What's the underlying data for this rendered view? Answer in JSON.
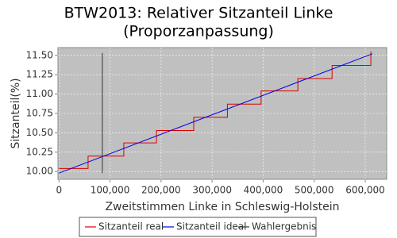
{
  "chart_data": {
    "type": "line",
    "title": "BTW2013: Relativer Sitzanteil Linke",
    "subtitle": "(Proporzanpassung)",
    "x_label": "Zweitstimmen Linke in Schleswig-Holstein",
    "y_label": "Sitzanteil(%)",
    "xlim": [
      -2000,
      642000
    ],
    "ylim": [
      9.9,
      11.6
    ],
    "xticks": [
      {
        "value": 0,
        "label": "0"
      },
      {
        "value": 100000,
        "label": "100,000"
      },
      {
        "value": 200000,
        "label": "200,000"
      },
      {
        "value": 300000,
        "label": "300,000"
      },
      {
        "value": 400000,
        "label": "400,000"
      },
      {
        "value": 500000,
        "label": "500,000"
      },
      {
        "value": 600000,
        "label": "600,000"
      }
    ],
    "yticks": [
      {
        "value": 10.0,
        "label": "10.00"
      },
      {
        "value": 10.25,
        "label": "10.25"
      },
      {
        "value": 10.5,
        "label": "10.50"
      },
      {
        "value": 10.75,
        "label": "10.75"
      },
      {
        "value": 11.0,
        "label": "11.00"
      },
      {
        "value": 11.25,
        "label": "11.25"
      },
      {
        "value": 11.5,
        "label": "11.50"
      }
    ],
    "grid": true,
    "series": [
      {
        "name": "Sitzanteil real",
        "color": "#dd0000",
        "x": [
          0,
          57000,
          57000,
          127000,
          127000,
          191000,
          191000,
          264000,
          264000,
          330000,
          330000,
          396000,
          396000,
          468000,
          468000,
          535000,
          535000,
          611000,
          611000
        ],
        "values": [
          10.04,
          10.04,
          10.2,
          10.2,
          10.37,
          10.37,
          10.53,
          10.53,
          10.7,
          10.7,
          10.87,
          10.87,
          11.04,
          11.04,
          11.2,
          11.2,
          11.37,
          11.37,
          11.55
        ]
      },
      {
        "name": "Sitzanteil ideal",
        "color": "#0000dd",
        "x": [
          0,
          614000
        ],
        "values": [
          9.98,
          11.52
        ]
      },
      {
        "name": "Wahlergebnis",
        "color": "#333333",
        "x": [
          85000,
          85000
        ],
        "values": [
          9.98,
          11.53
        ]
      }
    ]
  }
}
